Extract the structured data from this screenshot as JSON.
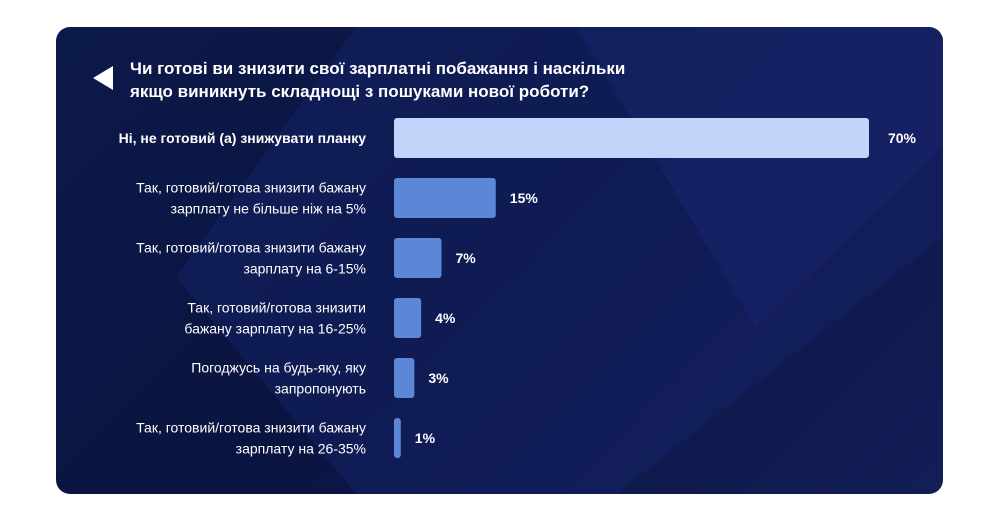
{
  "title_lines": [
    "Чи готові ви знизити свої зарплатні побажання і наскільки",
    "якщо виникнуть складнощі з пошуками нової роботи?"
  ],
  "colors": {
    "highlight_bar": "#c1d5fa",
    "bar": "#5b87d6",
    "text": "#ffffff",
    "background": "#0b1645"
  },
  "chart_data": {
    "type": "bar",
    "orientation": "horizontal",
    "title": "Чи готові ви знизити свої зарплатні побажання і наскільки якщо виникнуть складнощі з пошуками нової роботи?",
    "categories": [
      [
        "Ні, не готовий (а) знижувати планку"
      ],
      [
        "Так, готовий/готова знизити бажану",
        "зарплату не більше ніж на 5%"
      ],
      [
        "Так, готовий/готова знизити бажану",
        "зарплату на 6-15%"
      ],
      [
        "Так, готовий/готова знизити",
        "бажану зарплату на 16-25%"
      ],
      [
        "Погоджусь на будь-яку, яку",
        "запропонують"
      ],
      [
        "Так, готовий/готова знизити бажану",
        "зарплату на 26-35%"
      ]
    ],
    "values": [
      70,
      15,
      7,
      4,
      3,
      1
    ],
    "value_labels": [
      "70%",
      "15%",
      "7%",
      "4%",
      "3%",
      "1%"
    ],
    "highlight_index": 0,
    "xlim": [
      0,
      70
    ],
    "grid": false
  }
}
